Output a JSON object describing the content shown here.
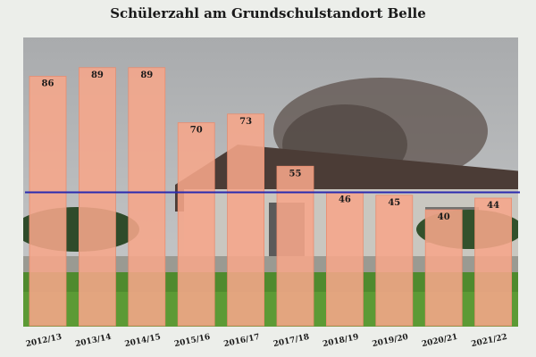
{
  "chart_data": {
    "type": "bar",
    "title": "Schülerzahl am Grundschulstandort Belle",
    "categories": [
      "2012/13",
      "2013/14",
      "2014/15",
      "2015/16",
      "2016/17",
      "2017/18",
      "2018/19",
      "2019/20",
      "2020/21",
      "2021/22"
    ],
    "values": [
      86,
      89,
      89,
      70,
      73,
      55,
      46,
      45,
      40,
      44
    ],
    "reference_line": 46,
    "ylim": [
      0,
      100
    ],
    "xlabel": "",
    "ylabel": "",
    "grid": false,
    "legend": "none",
    "colors": {
      "bar_fill": "#f6a68a",
      "bar_stroke": "#e88d70",
      "reference_line": "#2a2ab0"
    }
  }
}
